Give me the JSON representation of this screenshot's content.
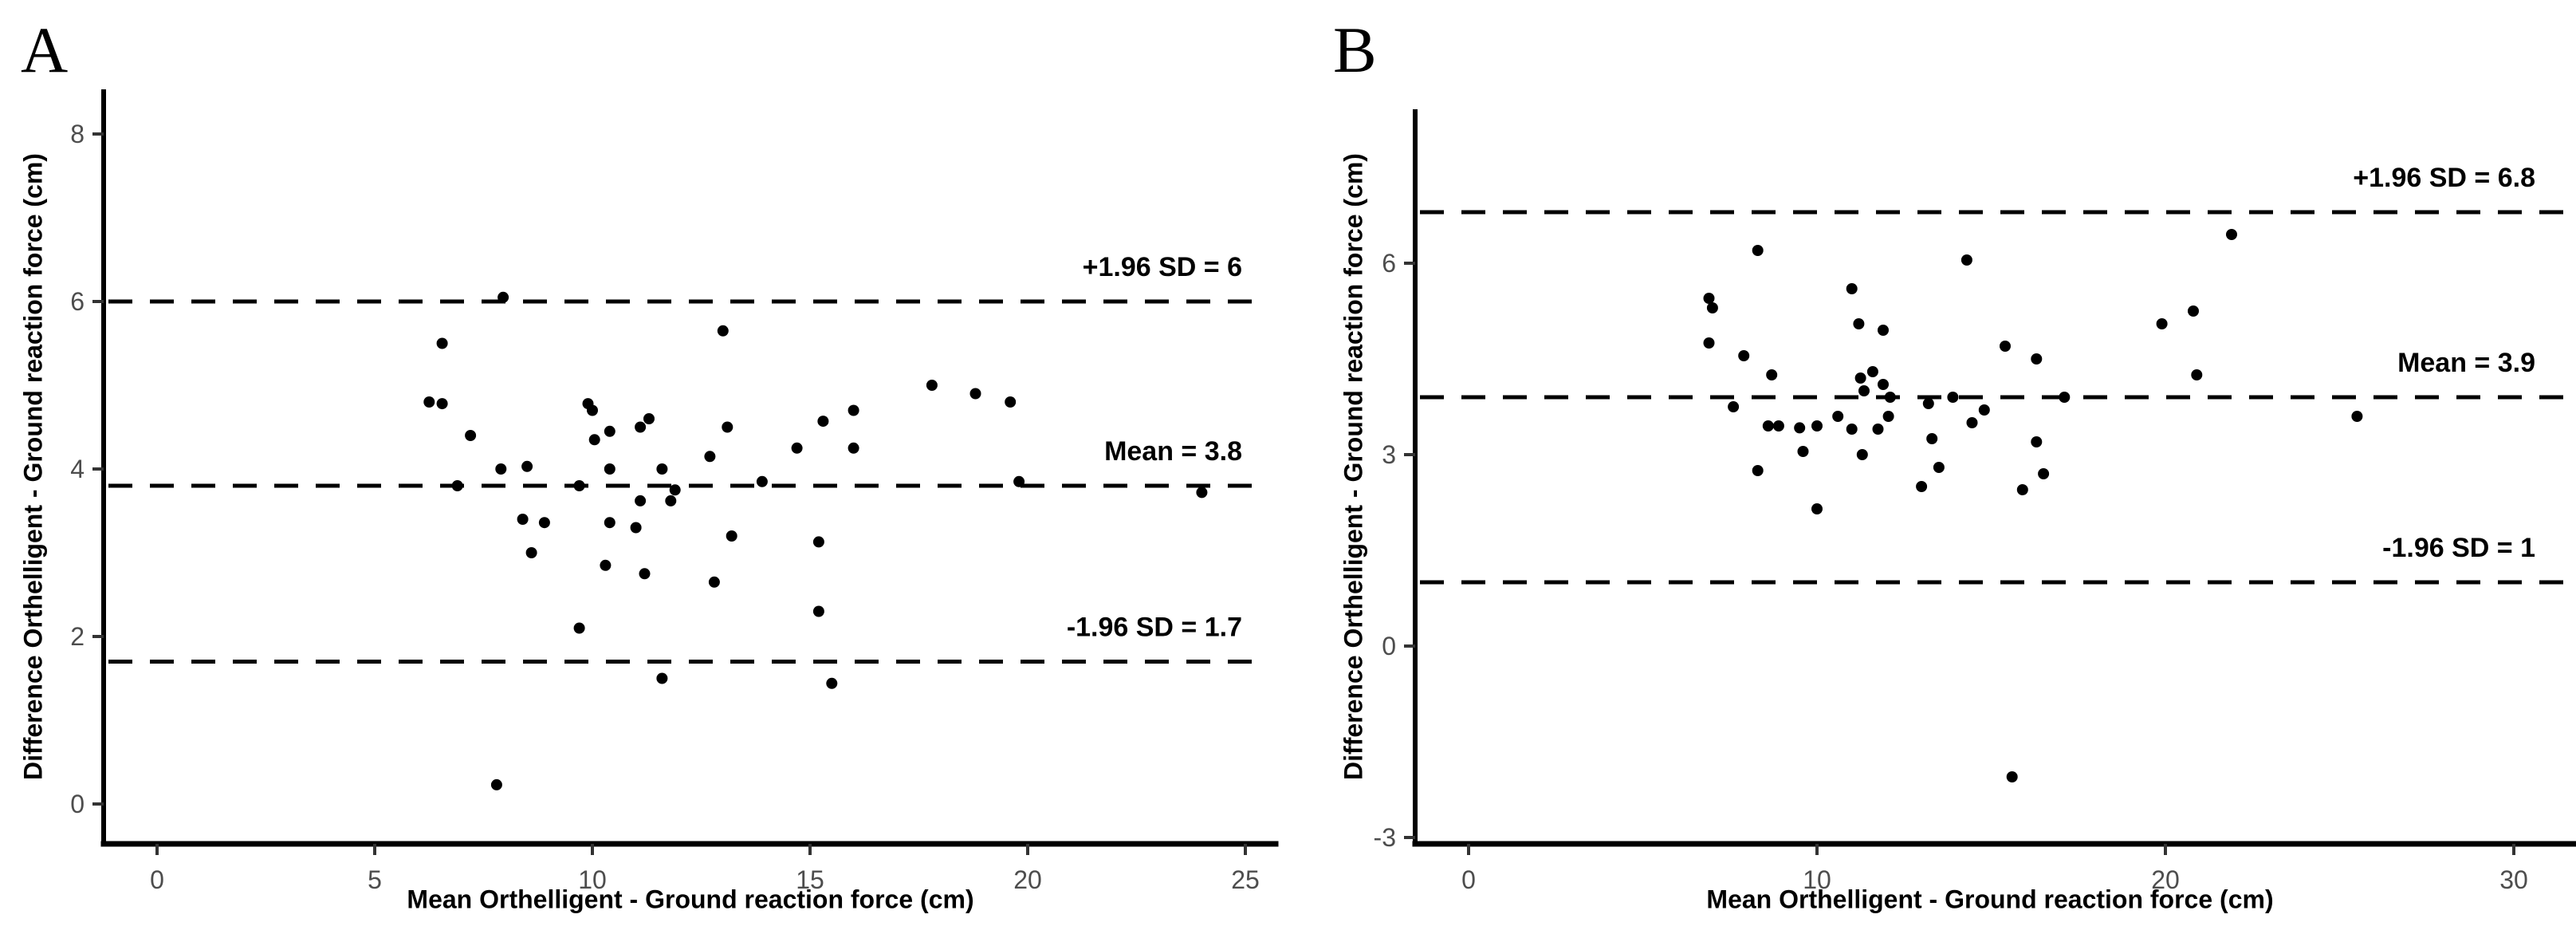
{
  "figure": {
    "background_color": "#ffffff",
    "axis_color": "#000000",
    "tick_label_color": "#4d4d4d",
    "point_color": "#000000",
    "line_color": "#000000"
  },
  "panels": [
    {
      "label": "A",
      "x_axis": {
        "title": "Mean Orthelligent - Ground reaction force (cm)"
      },
      "y_axis": {
        "title": "Difference Orthelligent - Ground reaction force (cm)"
      }
    },
    {
      "label": "B",
      "x_axis": {
        "title": "Mean Orthelligent - Ground reaction force (cm)"
      },
      "y_axis": {
        "title": "Difference Orthelligent - Ground reaction force (cm)"
      }
    }
  ],
  "chart_data": [
    {
      "type": "scatter",
      "title": "A",
      "xlabel": "Mean Orthelligent - Ground reaction force (cm)",
      "ylabel": "Difference Orthelligent - Ground reaction force (cm)",
      "xlim": [
        -1.2,
        25.7
      ],
      "ylim": [
        -0.5,
        8.5
      ],
      "x_ticks": [
        0,
        5,
        10,
        15,
        20,
        25
      ],
      "y_ticks": [
        8,
        6,
        4,
        2,
        0
      ],
      "grid": false,
      "legend": "none",
      "reference_lines": [
        {
          "value": 6.0,
          "label": "+1.96 SD = 6"
        },
        {
          "value": 3.8,
          "label": "Mean = 3.8"
        },
        {
          "value": 1.7,
          "label": "-1.96 SD = 1.7"
        }
      ],
      "points": [
        [
          7.95,
          6.05
        ],
        [
          13.0,
          5.65
        ],
        [
          6.55,
          5.5
        ],
        [
          6.25,
          4.8
        ],
        [
          6.55,
          4.78
        ],
        [
          9.9,
          4.78
        ],
        [
          10.0,
          4.7
        ],
        [
          11.3,
          4.6
        ],
        [
          11.1,
          4.5
        ],
        [
          10.4,
          4.45
        ],
        [
          7.2,
          4.4
        ],
        [
          10.05,
          4.35
        ],
        [
          13.1,
          4.5
        ],
        [
          15.3,
          4.57
        ],
        [
          16.0,
          4.7
        ],
        [
          14.7,
          4.25
        ],
        [
          16.0,
          4.25
        ],
        [
          12.7,
          4.15
        ],
        [
          7.9,
          4.0
        ],
        [
          8.5,
          4.03
        ],
        [
          10.4,
          4.0
        ],
        [
          11.6,
          4.0
        ],
        [
          6.9,
          3.8
        ],
        [
          9.7,
          3.8
        ],
        [
          13.9,
          3.85
        ],
        [
          11.9,
          3.75
        ],
        [
          11.1,
          3.62
        ],
        [
          11.8,
          3.62
        ],
        [
          17.8,
          5.0
        ],
        [
          18.8,
          4.9
        ],
        [
          19.6,
          4.8
        ],
        [
          19.8,
          3.85
        ],
        [
          24.0,
          3.72
        ],
        [
          8.4,
          3.4
        ],
        [
          8.9,
          3.36
        ],
        [
          10.4,
          3.36
        ],
        [
          11.0,
          3.3
        ],
        [
          13.2,
          3.2
        ],
        [
          15.2,
          3.13
        ],
        [
          8.6,
          3.0
        ],
        [
          10.3,
          2.85
        ],
        [
          11.2,
          2.75
        ],
        [
          12.8,
          2.65
        ],
        [
          15.2,
          2.3
        ],
        [
          9.7,
          2.1
        ],
        [
          11.6,
          1.5
        ],
        [
          15.5,
          1.44
        ],
        [
          7.8,
          0.23
        ]
      ]
    },
    {
      "type": "scatter",
      "title": "B",
      "xlabel": "Mean Orthelligent - Ground reaction force (cm)",
      "ylabel": "Difference Orthelligent - Ground reaction force (cm)",
      "xlim": [
        -1.5,
        31.7
      ],
      "ylim": [
        -3.1,
        8.4
      ],
      "x_ticks": [
        0,
        10,
        20,
        30
      ],
      "y_ticks": [
        6,
        3,
        0,
        -3
      ],
      "grid": false,
      "legend": "none",
      "reference_lines": [
        {
          "value": 6.8,
          "label": "+1.96 SD = 6.8"
        },
        {
          "value": 3.9,
          "label": "Mean = 3.9"
        },
        {
          "value": 1.0,
          "label": "-1.96 SD = 1"
        }
      ],
      "points": [
        [
          8.3,
          6.2
        ],
        [
          14.3,
          6.05
        ],
        [
          11.0,
          5.6
        ],
        [
          6.9,
          5.45
        ],
        [
          7.0,
          5.3
        ],
        [
          11.2,
          5.05
        ],
        [
          11.9,
          4.95
        ],
        [
          6.9,
          4.75
        ],
        [
          7.9,
          4.55
        ],
        [
          15.4,
          4.7
        ],
        [
          16.3,
          4.5
        ],
        [
          8.7,
          4.25
        ],
        [
          11.6,
          4.3
        ],
        [
          11.25,
          4.2
        ],
        [
          11.9,
          4.1
        ],
        [
          11.35,
          4.0
        ],
        [
          12.1,
          3.9
        ],
        [
          13.9,
          3.9
        ],
        [
          13.2,
          3.8
        ],
        [
          14.8,
          3.7
        ],
        [
          7.6,
          3.75
        ],
        [
          10.6,
          3.6
        ],
        [
          12.05,
          3.6
        ],
        [
          14.45,
          3.5
        ],
        [
          8.6,
          3.45
        ],
        [
          8.9,
          3.45
        ],
        [
          9.5,
          3.42
        ],
        [
          10.0,
          3.45
        ],
        [
          11.0,
          3.4
        ],
        [
          11.75,
          3.4
        ],
        [
          9.6,
          3.05
        ],
        [
          11.3,
          3.0
        ],
        [
          8.3,
          2.75
        ],
        [
          13.3,
          3.25
        ],
        [
          13.5,
          2.8
        ],
        [
          13.0,
          2.5
        ],
        [
          10.0,
          2.15
        ],
        [
          16.3,
          3.2
        ],
        [
          16.5,
          2.7
        ],
        [
          15.9,
          2.45
        ],
        [
          17.1,
          3.9
        ],
        [
          19.9,
          5.05
        ],
        [
          20.8,
          5.25
        ],
        [
          20.9,
          4.25
        ],
        [
          21.9,
          6.45
        ],
        [
          25.5,
          3.6
        ],
        [
          15.6,
          -2.05
        ]
      ]
    }
  ]
}
